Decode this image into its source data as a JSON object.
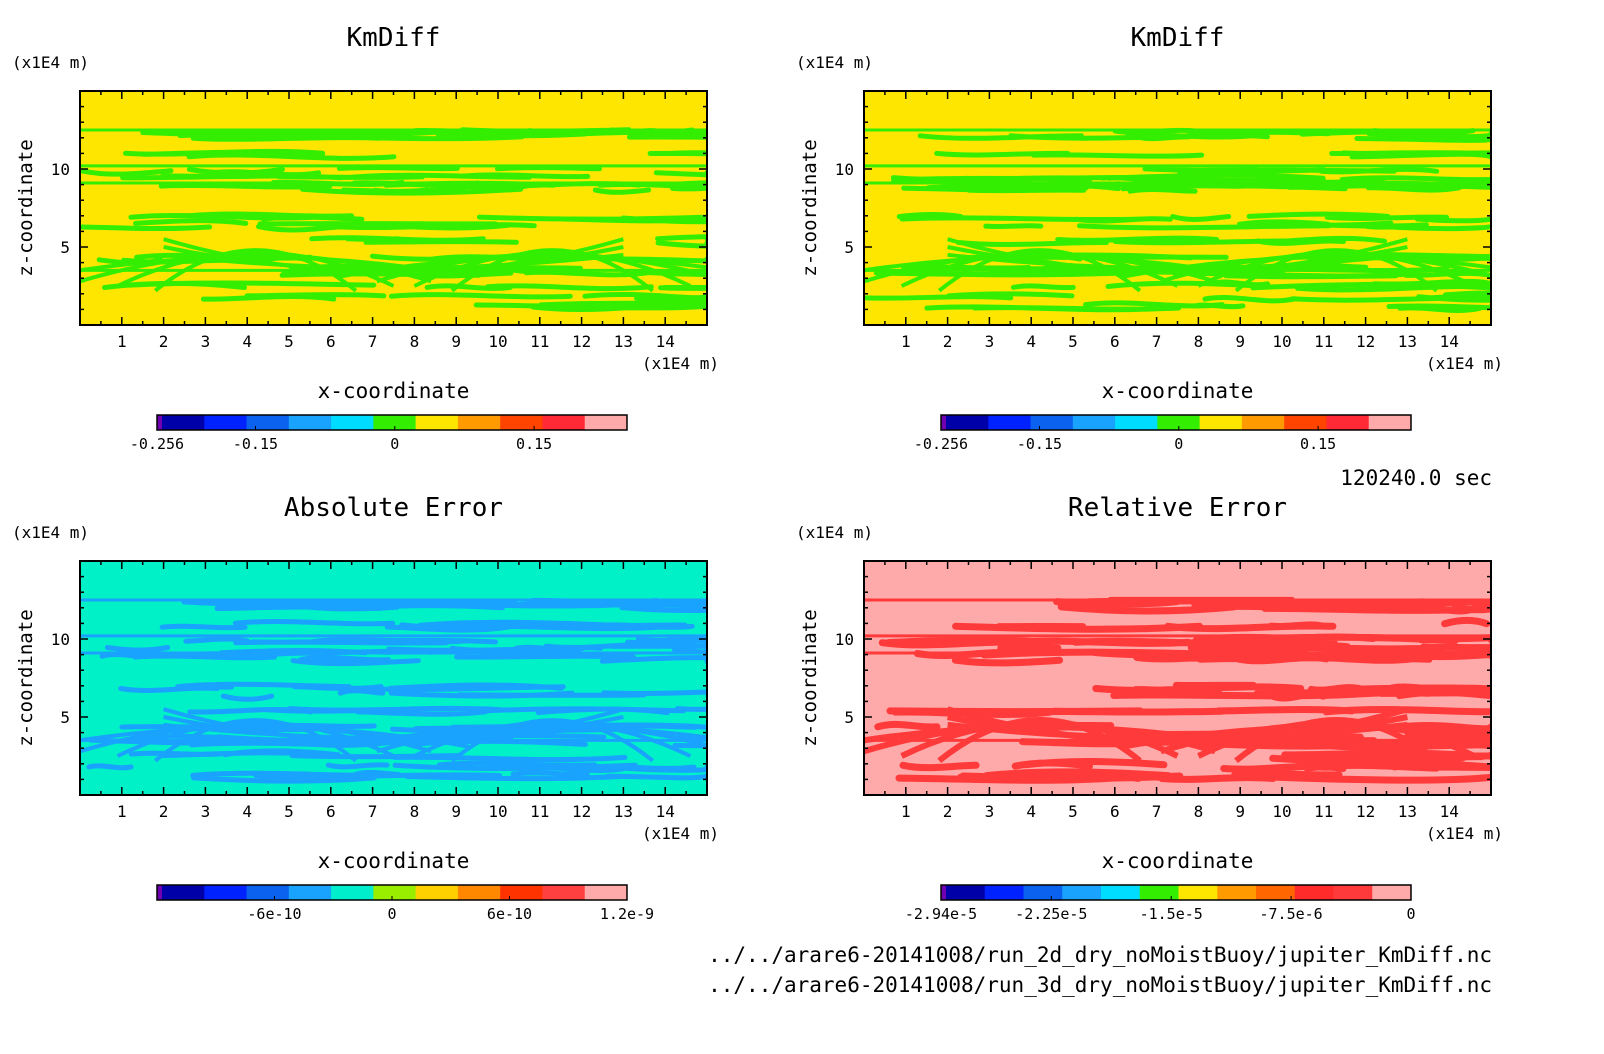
{
  "time_label": "120240.0 sec",
  "files": [
    "../../arare6-20141008/run_2d_dry_noMoistBuoy/jupiter_KmDiff.nc",
    "../../arare6-20141008/run_3d_dry_noMoistBuoy/jupiter_KmDiff.nc"
  ],
  "chart_data": [
    {
      "type": "heatmap",
      "title": "KmDiff",
      "xlabel": "x-coordinate",
      "ylabel": "z-coordinate",
      "x_unit": "(x1E4 m)",
      "y_unit": "(x1E4 m)",
      "xlim": [
        0,
        15
      ],
      "ylim": [
        0,
        15
      ],
      "xticks": [
        "1",
        "2",
        "3",
        "4",
        "5",
        "6",
        "7",
        "8",
        "9",
        "10",
        "11",
        "12",
        "13",
        "14"
      ],
      "yticks": [
        "5",
        "10"
      ],
      "background_color": "#ffe600",
      "pattern_color": "#33ee00",
      "colorbar": {
        "colors": [
          "#7000b0",
          "#0000a8",
          "#0022ff",
          "#0a62ee",
          "#1aa2ff",
          "#00dcff",
          "#33ee00",
          "#ffe600",
          "#ff9a00",
          "#ff4400",
          "#ff2a35",
          "#ffaaaa"
        ],
        "tick_labels": [
          "-0.256",
          "-0.15",
          "0",
          "0.15"
        ],
        "tick_values": [
          -0.256,
          -0.15,
          0,
          0.15
        ],
        "vmin": -0.256,
        "vmax": 0.25
      }
    },
    {
      "type": "heatmap",
      "title": "KmDiff",
      "xlabel": "x-coordinate",
      "ylabel": "z-coordinate",
      "x_unit": "(x1E4 m)",
      "y_unit": "(x1E4 m)",
      "xlim": [
        0,
        15
      ],
      "ylim": [
        0,
        15
      ],
      "xticks": [
        "1",
        "2",
        "3",
        "4",
        "5",
        "6",
        "7",
        "8",
        "9",
        "10",
        "11",
        "12",
        "13",
        "14"
      ],
      "yticks": [
        "5",
        "10"
      ],
      "background_color": "#ffe600",
      "pattern_color": "#33ee00",
      "colorbar": {
        "colors": [
          "#7000b0",
          "#0000a8",
          "#0022ff",
          "#0a62ee",
          "#1aa2ff",
          "#00dcff",
          "#33ee00",
          "#ffe600",
          "#ff9a00",
          "#ff4400",
          "#ff2a35",
          "#ffaaaa"
        ],
        "tick_labels": [
          "-0.256",
          "-0.15",
          "0",
          "0.15"
        ],
        "tick_values": [
          -0.256,
          -0.15,
          0,
          0.15
        ],
        "vmin": -0.256,
        "vmax": 0.25
      }
    },
    {
      "type": "heatmap",
      "title": "Absolute Error",
      "xlabel": "x-coordinate",
      "ylabel": "z-coordinate",
      "x_unit": "(x1E4 m)",
      "y_unit": "(x1E4 m)",
      "xlim": [
        0,
        15
      ],
      "ylim": [
        0,
        15
      ],
      "xticks": [
        "1",
        "2",
        "3",
        "4",
        "5",
        "6",
        "7",
        "8",
        "9",
        "10",
        "11",
        "12",
        "13",
        "14"
      ],
      "yticks": [
        "5",
        "10"
      ],
      "background_color": "#00f0c8",
      "pattern_color": "#1aa2ff",
      "colorbar": {
        "colors": [
          "#7000b0",
          "#0000a8",
          "#0022ff",
          "#0a62ee",
          "#1aa2ff",
          "#00eecc",
          "#99ee00",
          "#ffd000",
          "#ff8800",
          "#ff3300",
          "#ff4040",
          "#ffaaaa"
        ],
        "tick_labels": [
          "-6e-10",
          "0",
          "6e-10",
          "1.2e-9"
        ],
        "tick_values": [
          -6e-10,
          0,
          6e-10,
          1.2e-09
        ],
        "vmin": -1.2e-09,
        "vmax": 1.2e-09
      }
    },
    {
      "type": "heatmap",
      "title": "Relative Error",
      "xlabel": "x-coordinate",
      "ylabel": "z-coordinate",
      "x_unit": "(x1E4 m)",
      "y_unit": "(x1E4 m)",
      "xlim": [
        0,
        15
      ],
      "ylim": [
        0,
        15
      ],
      "xticks": [
        "1",
        "2",
        "3",
        "4",
        "5",
        "6",
        "7",
        "8",
        "9",
        "10",
        "11",
        "12",
        "13",
        "14"
      ],
      "yticks": [
        "5",
        "10"
      ],
      "background_color": "#ffaaaa",
      "pattern_color": "#ff3a3a",
      "colorbar": {
        "colors": [
          "#7000b0",
          "#0000a8",
          "#0022ff",
          "#0a62ee",
          "#1aa2ff",
          "#00dcff",
          "#33ee00",
          "#ffe600",
          "#ff9a00",
          "#ff6600",
          "#ff2a2a",
          "#ff3a3a",
          "#ffaaaa"
        ],
        "tick_labels": [
          "-2.94e-5",
          "-2.25e-5",
          "-1.5e-5",
          "-7.5e-6",
          "0"
        ],
        "tick_values": [
          -2.94e-05,
          -2.25e-05,
          -1.5e-05,
          -7.5e-06,
          0
        ],
        "vmin": -2.94e-05,
        "vmax": 0
      }
    }
  ]
}
